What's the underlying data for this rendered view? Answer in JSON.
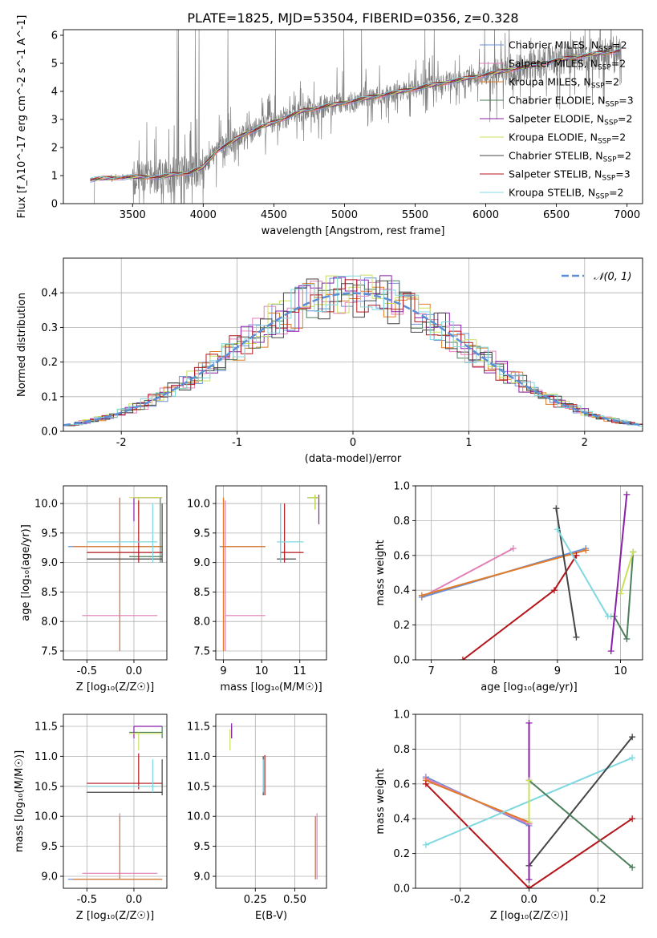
{
  "title": "PLATE=1825, MJD=53504, FIBERID=0356, z=0.328",
  "colors": {
    "spectrum": "#7f7f7f",
    "normal_curve": "#5b8fd6",
    "grid": "#b0b0b0"
  },
  "series": [
    {
      "name": "Chabrier MILES, N",
      "sub": "SSP",
      "suffix": "=2",
      "color": "#6a8fd8"
    },
    {
      "name": "Salpeter MILES, N",
      "sub": "SSP",
      "suffix": "=2",
      "color": "#e27fb7"
    },
    {
      "name": "Kroupa MILES, N",
      "sub": "SSP",
      "suffix": "=2",
      "color": "#e07b27"
    },
    {
      "name": "Chabrier ELODIE, N",
      "sub": "SSP",
      "suffix": "=3",
      "color": "#4d7f5a"
    },
    {
      "name": "Salpeter ELODIE, N",
      "sub": "SSP",
      "suffix": "=2",
      "color": "#8b1fa9"
    },
    {
      "name": "Kroupa ELODIE, N",
      "sub": "SSP",
      "suffix": "=2",
      "color": "#c9e05a"
    },
    {
      "name": "Chabrier STELIB, N",
      "sub": "SSP",
      "suffix": "=2",
      "color": "#444444"
    },
    {
      "name": "Salpeter STELIB, N",
      "sub": "SSP",
      "suffix": "=3",
      "color": "#b3151b"
    },
    {
      "name": "Kroupa STELIB, N",
      "sub": "SSP",
      "suffix": "=2",
      "color": "#7fd8e0"
    }
  ],
  "chart_data": [
    {
      "id": "spectrum",
      "type": "line",
      "xlabel": "wavelength [Angstrom, rest frame]",
      "ylabel": "Flux [f_λ10^-17 erg cm^-2 s^-1 A^-1]",
      "xlim": [
        3010,
        7110
      ],
      "ylim": [
        0,
        6.2
      ],
      "xticks": [
        3500,
        4000,
        4500,
        5000,
        5500,
        6000,
        6500,
        7000
      ],
      "yticks": [
        0,
        1,
        2,
        3,
        4,
        5,
        6
      ],
      "model_continuum": {
        "x": [
          3200,
          3300,
          3500,
          3700,
          3800,
          3900,
          4000,
          4100,
          4300,
          4500,
          4700,
          4900,
          5000,
          5200,
          5400,
          5600,
          5800,
          6000,
          6200,
          6400,
          6600,
          6800,
          6950
        ],
        "y": [
          0.85,
          0.9,
          0.95,
          0.95,
          1.05,
          1.1,
          1.3,
          1.9,
          2.5,
          2.9,
          3.3,
          3.5,
          3.6,
          3.8,
          4.0,
          4.2,
          4.4,
          4.6,
          4.8,
          5.0,
          5.2,
          5.35,
          5.45
        ]
      },
      "grid": true,
      "legend_position": "top-right"
    },
    {
      "id": "residual_hist",
      "type": "line",
      "xlabel": "(data-model)/error",
      "ylabel": "Normed distribution",
      "xlim": [
        -2.5,
        2.5
      ],
      "ylim": [
        0,
        0.5
      ],
      "xticks": [
        -2,
        -1,
        0,
        1,
        2
      ],
      "yticks": [
        0.0,
        0.1,
        0.2,
        0.3,
        0.4
      ],
      "reference_label": "𝒩(0, 1)",
      "grid": true,
      "legend_position": "top-right"
    },
    {
      "id": "age_vs_Z",
      "type": "scatter",
      "xlabel": "Z [log₁₀(Z/Z☉)]",
      "ylabel": "age  [log₁₀(age/yr)]",
      "xlim": [
        -0.75,
        0.35
      ],
      "ylim": [
        7.35,
        10.3
      ],
      "xticks": [
        -0.5,
        0.0
      ],
      "yticks": [
        7.5,
        8.0,
        8.5,
        9.0,
        9.5,
        10.0
      ],
      "points": [
        {
          "s": 0,
          "x": -0.2,
          "y": 9.27,
          "xe": [
            -0.7,
            0.3
          ],
          "ye": [
            9.27,
            9.27
          ]
        },
        {
          "s": 1,
          "x": -0.15,
          "y": 8.1,
          "xe": [
            -0.55,
            0.25
          ],
          "ye": [
            7.5,
            10.1
          ]
        },
        {
          "s": 2,
          "x": -0.15,
          "y": 9.27,
          "xe": [
            -0.65,
            0.3
          ],
          "ye": [
            7.5,
            10.1
          ]
        },
        {
          "s": 3,
          "x": 0.28,
          "y": 9.1,
          "xe": [
            -0.05,
            0.3
          ],
          "ye": [
            9.0,
            10.1
          ]
        },
        {
          "s": 4,
          "x": 0.0,
          "y": 10.1,
          "xe": [
            0.0,
            0.3
          ],
          "ye": [
            9.7,
            10.1
          ]
        },
        {
          "s": 5,
          "x": 0.05,
          "y": 10.1,
          "xe": [
            -0.05,
            0.3
          ],
          "ye": [
            9.8,
            10.1
          ]
        },
        {
          "s": 6,
          "x": 0.3,
          "y": 9.06,
          "xe": [
            -0.5,
            0.3
          ],
          "ye": [
            9.0,
            10.0
          ]
        },
        {
          "s": 7,
          "x": 0.05,
          "y": 9.17,
          "xe": [
            -0.5,
            0.3
          ],
          "ye": [
            9.0,
            10.05
          ]
        },
        {
          "s": 8,
          "x": 0.2,
          "y": 9.35,
          "xe": [
            -0.5,
            0.25
          ],
          "ye": [
            9.0,
            10.0
          ]
        }
      ]
    },
    {
      "id": "age_vs_mass",
      "type": "scatter",
      "xlabel": "mass [log₁₀(M/M☉)]",
      "ylabel": "",
      "xlim": [
        8.8,
        11.7
      ],
      "ylim": [
        7.35,
        10.3
      ],
      "xticks": [
        9,
        10,
        11
      ],
      "yticks": [
        7.5,
        8.0,
        8.5,
        9.0,
        9.5,
        10.0
      ],
      "points": [
        {
          "s": 0,
          "x": 9.0,
          "y": 9.27,
          "xe": [
            8.9,
            10.1
          ],
          "ye": [
            7.5,
            10.1
          ]
        },
        {
          "s": 1,
          "x": 9.05,
          "y": 8.1,
          "xe": [
            9.05,
            10.1
          ],
          "ye": [
            7.5,
            10.05
          ]
        },
        {
          "s": 2,
          "x": 9.0,
          "y": 9.27,
          "xe": [
            8.95,
            10.1
          ],
          "ye": [
            7.5,
            10.1
          ]
        },
        {
          "s": 3,
          "x": 11.4,
          "y": 10.1,
          "xe": [
            11.2,
            11.5
          ],
          "ye": [
            9.9,
            10.15
          ]
        },
        {
          "s": 4,
          "x": 11.5,
          "y": 10.1,
          "xe": [
            11.4,
            11.5
          ],
          "ye": [
            9.65,
            10.15
          ]
        },
        {
          "s": 5,
          "x": 11.4,
          "y": 10.1,
          "xe": [
            11.2,
            11.5
          ],
          "ye": [
            9.9,
            10.15
          ]
        },
        {
          "s": 6,
          "x": 10.5,
          "y": 9.06,
          "xe": [
            10.4,
            10.9
          ],
          "ye": [
            9.0,
            10.0
          ]
        },
        {
          "s": 7,
          "x": 10.6,
          "y": 9.17,
          "xe": [
            10.5,
            11.1
          ],
          "ye": [
            9.0,
            10.0
          ]
        },
        {
          "s": 8,
          "x": 10.5,
          "y": 9.35,
          "xe": [
            10.4,
            11.1
          ],
          "ye": [
            9.0,
            10.0
          ]
        }
      ]
    },
    {
      "id": "massweight_vs_age",
      "type": "line",
      "xlabel": "age  [log₁₀(age/yr)]",
      "ylabel": "mass weight",
      "xlim": [
        6.75,
        10.35
      ],
      "ylim": [
        0,
        1.0
      ],
      "xticks": [
        7,
        8,
        9,
        10
      ],
      "yticks": [
        0.0,
        0.2,
        0.4,
        0.6,
        0.8,
        1.0
      ],
      "lines": [
        {
          "s": 1,
          "x": [
            6.85,
            8.3
          ],
          "y": [
            0.36,
            0.64
          ]
        },
        {
          "s": 0,
          "x": [
            6.85,
            9.45
          ],
          "y": [
            0.36,
            0.64
          ]
        },
        {
          "s": 2,
          "x": [
            6.85,
            9.45
          ],
          "y": [
            0.37,
            0.63
          ]
        },
        {
          "s": 7,
          "x": [
            7.5,
            8.95,
            9.3
          ],
          "y": [
            0.0,
            0.4,
            0.6
          ]
        },
        {
          "s": 6,
          "x": [
            8.98,
            9.3
          ],
          "y": [
            0.87,
            0.13
          ]
        },
        {
          "s": 8,
          "x": [
            9.0,
            9.8,
            9.85
          ],
          "y": [
            0.75,
            0.25,
            0.25
          ]
        },
        {
          "s": 3,
          "x": [
            9.9,
            10.1,
            10.2
          ],
          "y": [
            0.25,
            0.12,
            0.62
          ]
        },
        {
          "s": 4,
          "x": [
            9.85,
            10.1
          ],
          "y": [
            0.05,
            0.95
          ]
        },
        {
          "s": 5,
          "x": [
            10.0,
            10.2
          ],
          "y": [
            0.38,
            0.62
          ]
        }
      ]
    },
    {
      "id": "mass_vs_Z",
      "type": "scatter",
      "xlabel": "Z [log₁₀(Z/Z☉)]",
      "ylabel": "mass [log₁₀(M/M☉)]",
      "xlim": [
        -0.75,
        0.35
      ],
      "ylim": [
        8.8,
        11.7
      ],
      "xticks": [
        -0.5,
        0.0
      ],
      "yticks": [
        9.0,
        9.5,
        10.0,
        10.5,
        11.0,
        11.5
      ],
      "points": [
        {
          "s": 0,
          "x": -0.2,
          "y": 8.95,
          "xe": [
            -0.7,
            0.3
          ],
          "ye": [
            8.95,
            8.95
          ]
        },
        {
          "s": 1,
          "x": -0.15,
          "y": 9.05,
          "xe": [
            -0.55,
            0.25
          ],
          "ye": [
            8.95,
            10.05
          ]
        },
        {
          "s": 2,
          "x": -0.15,
          "y": 8.95,
          "xe": [
            -0.65,
            0.3
          ],
          "ye": [
            8.95,
            10.0
          ]
        },
        {
          "s": 3,
          "x": 0.3,
          "y": 11.4,
          "xe": [
            -0.05,
            0.3
          ],
          "ye": [
            11.3,
            11.5
          ]
        },
        {
          "s": 4,
          "x": 0.0,
          "y": 11.5,
          "xe": [
            0.0,
            0.3
          ],
          "ye": [
            11.3,
            11.5
          ]
        },
        {
          "s": 5,
          "x": 0.05,
          "y": 11.38,
          "xe": [
            -0.05,
            0.3
          ],
          "ye": [
            11.1,
            11.4
          ]
        },
        {
          "s": 6,
          "x": 0.3,
          "y": 10.4,
          "xe": [
            -0.5,
            0.3
          ],
          "ye": [
            10.35,
            10.95
          ]
        },
        {
          "s": 7,
          "x": 0.05,
          "y": 10.55,
          "xe": [
            -0.5,
            0.3
          ],
          "ye": [
            10.45,
            11.05
          ]
        },
        {
          "s": 8,
          "x": 0.2,
          "y": 10.5,
          "xe": [
            -0.5,
            0.25
          ],
          "ye": [
            10.4,
            10.95
          ]
        }
      ]
    },
    {
      "id": "mass_vs_EBV",
      "type": "scatter",
      "xlabel": "E(B-V)",
      "ylabel": "",
      "xlim": [
        0.0,
        0.7
      ],
      "ylim": [
        8.8,
        11.7
      ],
      "xticks": [
        0.25,
        0.5
      ],
      "yticks": [
        9.0,
        9.5,
        10.0,
        10.5,
        11.0,
        11.5
      ],
      "points": [
        {
          "s": 0,
          "x": 0.63,
          "y": 8.95,
          "ye": [
            8.95,
            10.0
          ]
        },
        {
          "s": 1,
          "x": 0.64,
          "y": 9.05,
          "ye": [
            8.95,
            10.05
          ]
        },
        {
          "s": 2,
          "x": 0.63,
          "y": 8.95,
          "ye": [
            8.95,
            10.0
          ]
        },
        {
          "s": 3,
          "x": 0.1,
          "y": 11.4,
          "ye": [
            11.3,
            11.5
          ]
        },
        {
          "s": 4,
          "x": 0.1,
          "y": 11.5,
          "ye": [
            11.3,
            11.55
          ]
        },
        {
          "s": 5,
          "x": 0.09,
          "y": 11.3,
          "ye": [
            11.1,
            11.45
          ]
        },
        {
          "s": 6,
          "x": 0.3,
          "y": 10.4,
          "ye": [
            10.35,
            11.0
          ]
        },
        {
          "s": 7,
          "x": 0.31,
          "y": 10.55,
          "ye": [
            10.35,
            11.02
          ]
        },
        {
          "s": 8,
          "x": 0.3,
          "y": 10.5,
          "ye": [
            10.4,
            10.95
          ]
        }
      ]
    },
    {
      "id": "massweight_vs_Z",
      "type": "line",
      "xlabel": "Z [log₁₀(Z/Z☉)]",
      "ylabel": "mass weight",
      "xlim": [
        -0.33,
        0.33
      ],
      "ylim": [
        0,
        1.0
      ],
      "xticks": [
        -0.2,
        0.0,
        0.2
      ],
      "yticks": [
        0.0,
        0.2,
        0.4,
        0.6,
        0.8,
        1.0
      ],
      "lines": [
        {
          "s": 0,
          "x": [
            -0.3,
            0.0
          ],
          "y": [
            0.64,
            0.36
          ]
        },
        {
          "s": 1,
          "x": [
            -0.3,
            0.0
          ],
          "y": [
            0.63,
            0.37
          ]
        },
        {
          "s": 2,
          "x": [
            -0.3,
            0.0
          ],
          "y": [
            0.62,
            0.38
          ]
        },
        {
          "s": 7,
          "x": [
            -0.3,
            0.0,
            0.3
          ],
          "y": [
            0.6,
            0.0,
            0.4
          ]
        },
        {
          "s": 8,
          "x": [
            -0.3,
            0.3
          ],
          "y": [
            0.25,
            0.75
          ]
        },
        {
          "s": 6,
          "x": [
            0.0,
            0.3
          ],
          "y": [
            0.13,
            0.87
          ]
        },
        {
          "s": 3,
          "x": [
            0.0,
            0.3
          ],
          "y": [
            0.62,
            0.12
          ]
        },
        {
          "s": 4,
          "x": [
            0.0,
            0.0
          ],
          "y": [
            0.05,
            0.95
          ]
        },
        {
          "s": 5,
          "x": [
            0.0,
            0.0
          ],
          "y": [
            0.38,
            0.62
          ]
        }
      ]
    }
  ]
}
